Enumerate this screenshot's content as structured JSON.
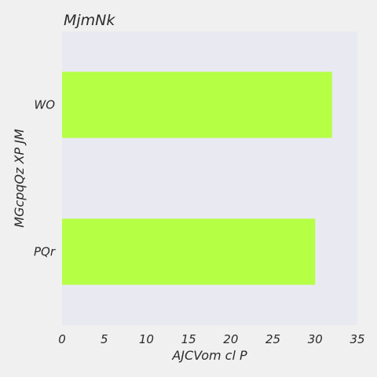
{
  "chart_data": {
    "type": "bar",
    "orientation": "horizontal",
    "title": "MjmNk",
    "xlabel": "AJCVom cl P",
    "ylabel": "MGcpqQz XP  JM",
    "categories": [
      "WO",
      "PQr"
    ],
    "values": [
      32,
      30
    ],
    "xlim": [
      0,
      35
    ],
    "xticks": [
      0,
      5,
      10,
      15,
      20,
      25,
      30,
      35
    ],
    "grid": false,
    "colors": {
      "bar": "#b5ff45",
      "plot_background": "#e9e9f2",
      "page_background": "#f0f0f0"
    }
  }
}
